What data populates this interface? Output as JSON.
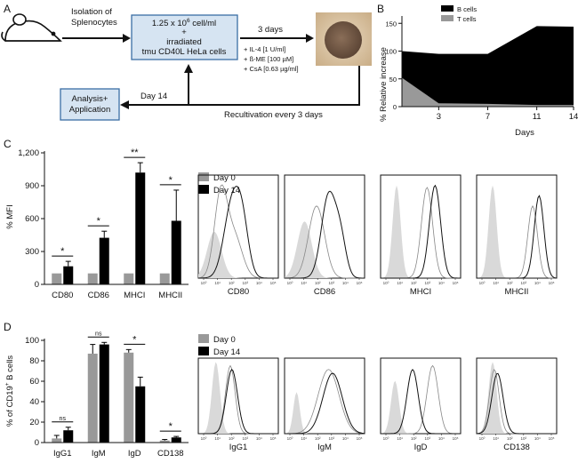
{
  "panel_letters": [
    "A",
    "B",
    "C",
    "D"
  ],
  "panel_a": {
    "isolation": [
      "Isolation of",
      "Splenocytes"
    ],
    "culture_lines": [
      "1.25 x 10^6 cell/ml",
      "+",
      "irradiated",
      "tmu CD40L HeLa cells"
    ],
    "culture_sup": "6",
    "culture_first_base": "1.25 x 10",
    "culture_first_tail": " cell/ml",
    "days3": "3 days",
    "supplements": [
      "+ IL-4 [1 U/ml]",
      "+ ß-ME [100 µM]",
      "+ CsA [0.63 µg/ml]"
    ],
    "analysis": [
      "Analysis+",
      "Application"
    ],
    "day14": "Day 14",
    "recult": "Recultivation every 3 days"
  },
  "colors": {
    "black": "#000000",
    "gray": "#999999",
    "light_gray": "#d9d9d9",
    "box_fill": "#d6e4f2",
    "box_stroke": "#3b6ea5"
  },
  "chart_data": [
    {
      "id": "B",
      "type": "area",
      "ylabel": "% Relative increase",
      "xlabel": "Days",
      "x_ticks": [
        3,
        7,
        11,
        14
      ],
      "y_ticks": [
        0,
        50,
        100,
        150
      ],
      "xlim": [
        0,
        14
      ],
      "ylim": [
        0,
        160
      ],
      "legend": [
        "B cells",
        "T cells"
      ],
      "series": [
        {
          "name": "B cells",
          "x": [
            0,
            3,
            7,
            11,
            14
          ],
          "values": [
            100,
            95,
            95,
            145,
            144
          ]
        },
        {
          "name": "T cells",
          "x": [
            0,
            3,
            7,
            11,
            14
          ],
          "values": [
            52,
            6,
            5,
            3,
            3
          ]
        }
      ]
    },
    {
      "id": "C",
      "type": "bar",
      "ylabel": "% MFI",
      "categories": [
        "CD80",
        "CD86",
        "MHCI",
        "MHCII"
      ],
      "y_ticks": [
        "0",
        "300",
        "600",
        "900",
        "1,200"
      ],
      "ylim": [
        0,
        1200
      ],
      "legend": [
        "Day 0",
        "Day 14"
      ],
      "series": [
        {
          "name": "Day 0",
          "values": [
            100,
            100,
            100,
            100
          ],
          "errors": [
            0,
            0,
            0,
            0
          ]
        },
        {
          "name": "Day 14",
          "values": [
            165,
            425,
            1020,
            580
          ],
          "errors": [
            45,
            60,
            90,
            280
          ]
        }
      ],
      "significance": [
        "*",
        "*",
        "**",
        "*"
      ]
    },
    {
      "id": "D",
      "type": "bar",
      "ylabel": "% of CD19+ B cells",
      "categories": [
        "IgG1",
        "IgM",
        "IgD",
        "CD138"
      ],
      "y_ticks": [
        0,
        20,
        40,
        60,
        80,
        100
      ],
      "ylim": [
        0,
        100
      ],
      "legend": [
        "Day 0",
        "Day 14"
      ],
      "series": [
        {
          "name": "Day 0",
          "values": [
            4,
            87,
            88,
            2
          ],
          "errors": [
            3,
            9,
            3,
            1
          ]
        },
        {
          "name": "Day 14",
          "values": [
            12,
            96,
            55,
            5
          ],
          "errors": [
            3,
            2,
            9,
            1
          ]
        }
      ],
      "significance": [
        "ns",
        "ns",
        "*",
        "*"
      ]
    }
  ],
  "hist_c": {
    "titles": [
      "CD80",
      "CD86",
      "MHCI",
      "MHCII"
    ]
  },
  "hist_d": {
    "titles": [
      "IgG1",
      "IgM",
      "IgD",
      "CD138"
    ]
  },
  "hist_axis_ticks": [
    "10⁰",
    "10¹",
    "10²",
    "10³",
    "10⁴",
    "10⁵"
  ],
  "legend_day0": "Day 0",
  "legend_day14": "Day 14",
  "ylabel_d_base": "% of CD19",
  "ylabel_d_sup": "+",
  "ylabel_d_tail": " B cells"
}
